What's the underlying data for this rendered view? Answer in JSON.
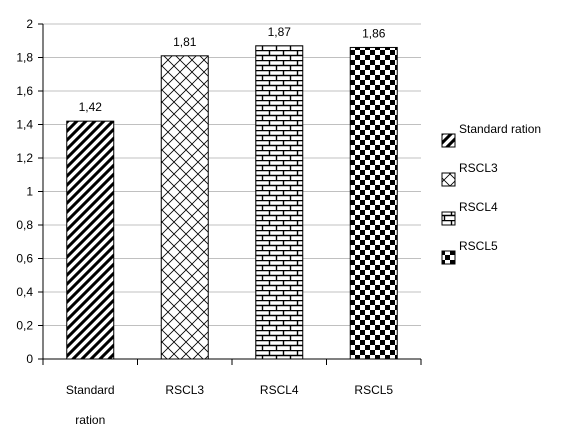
{
  "chart_data": {
    "type": "bar",
    "title": "",
    "xlabel": "",
    "ylabel": "",
    "categories": [
      [
        "Standard",
        "ration"
      ],
      [
        "RSCL3"
      ],
      [
        "RSCL4"
      ],
      [
        "RSCL5"
      ]
    ],
    "values": [
      1.42,
      1.81,
      1.87,
      1.86
    ],
    "data_labels": [
      "1,42",
      "1,81",
      "1,87",
      "1,86"
    ],
    "ylim": [
      0,
      2
    ],
    "yticks": [
      0,
      0.2,
      0.4,
      0.6,
      0.8,
      1,
      1.2,
      1.4,
      1.6,
      1.8,
      2
    ],
    "ytick_labels": [
      "0",
      "0,2",
      "0,4",
      "0,6",
      "0,8",
      "1",
      "1,2",
      "1,4",
      "1,6",
      "1,8",
      "2"
    ],
    "grid": true,
    "legend": {
      "placement": "right",
      "entries": [
        "Standard ration",
        "RSCL3",
        "RSCL4",
        "RSCL5"
      ]
    },
    "patterns": [
      "diagonal-stripes",
      "crosshatch",
      "brick",
      "checkerboard"
    ],
    "colors": {
      "bar_fill": "#000000",
      "background": "#ffffff",
      "grid": "#c0c0c0",
      "axis": "#000000"
    }
  }
}
